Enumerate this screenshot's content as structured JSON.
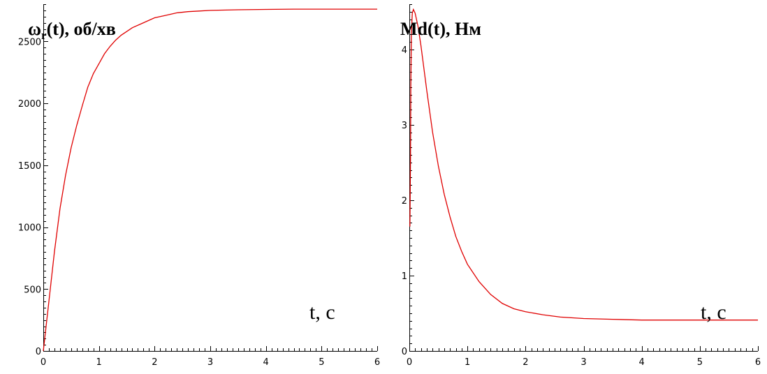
{
  "chart_data": [
    {
      "type": "line",
      "title": "ω",
      "title_sub": "r",
      "title_rest": "(t), об/хв",
      "xlabel": "t, c",
      "ylabel": "",
      "xlim": [
        0,
        6
      ],
      "ylim": [
        0,
        2800
      ],
      "x_ticks": [
        0,
        1,
        2,
        3,
        4,
        5,
        6
      ],
      "y_ticks": [
        0,
        500,
        1000,
        1500,
        2000,
        2500
      ],
      "x_tick_labels": [
        "0",
        "1",
        "2",
        "3",
        "4",
        "5",
        "6"
      ],
      "y_tick_labels": [
        "0",
        "500",
        "1000",
        "1500",
        "2000",
        "2500"
      ],
      "series_color": "#e00000",
      "grid": false,
      "series": [
        {
          "x": [
            0,
            0.05,
            0.1,
            0.2,
            0.3,
            0.4,
            0.5,
            0.6,
            0.7,
            0.8,
            0.9,
            1.0,
            1.1,
            1.2,
            1.3,
            1.4,
            1.5,
            1.6,
            1.8,
            2.0,
            2.2,
            2.4,
            2.6,
            2.8,
            3.0,
            3.5,
            4.0,
            4.5,
            5.0,
            5.5,
            6.0
          ],
          "y": [
            0,
            200,
            400,
            800,
            1150,
            1420,
            1640,
            1820,
            1980,
            2130,
            2240,
            2320,
            2400,
            2460,
            2510,
            2550,
            2580,
            2610,
            2650,
            2690,
            2710,
            2730,
            2740,
            2745,
            2750,
            2755,
            2758,
            2760,
            2760,
            2760,
            2760
          ]
        }
      ]
    },
    {
      "type": "line",
      "title": "Md(t), Нм",
      "xlabel": "t, c",
      "ylabel": "",
      "xlim": [
        0,
        6
      ],
      "ylim": [
        0,
        4.6
      ],
      "x_ticks": [
        0,
        1,
        2,
        3,
        4,
        5,
        6
      ],
      "y_ticks": [
        0,
        1,
        2,
        3,
        4
      ],
      "x_tick_labels": [
        "0",
        "1",
        "2",
        "3",
        "4",
        "5",
        "6"
      ],
      "y_tick_labels": [
        "0",
        "1",
        "2",
        "3",
        "4"
      ],
      "series_color": "#e00000",
      "grid": false,
      "series": [
        {
          "x": [
            0.01,
            0.02,
            0.025,
            0.035,
            0.05,
            0.07,
            0.1,
            0.15,
            0.2,
            0.3,
            0.4,
            0.5,
            0.6,
            0.7,
            0.8,
            0.9,
            1.0,
            1.2,
            1.4,
            1.6,
            1.8,
            2.0,
            2.3,
            2.6,
            3.0,
            3.5,
            4.0,
            5.0,
            6.0
          ],
          "y": [
            1.65,
            2.6,
            3.5,
            4.2,
            4.48,
            4.53,
            4.48,
            4.3,
            4.05,
            3.45,
            2.9,
            2.45,
            2.08,
            1.78,
            1.52,
            1.32,
            1.15,
            0.92,
            0.75,
            0.63,
            0.56,
            0.52,
            0.48,
            0.45,
            0.43,
            0.42,
            0.41,
            0.41,
            0.41
          ]
        }
      ]
    }
  ]
}
